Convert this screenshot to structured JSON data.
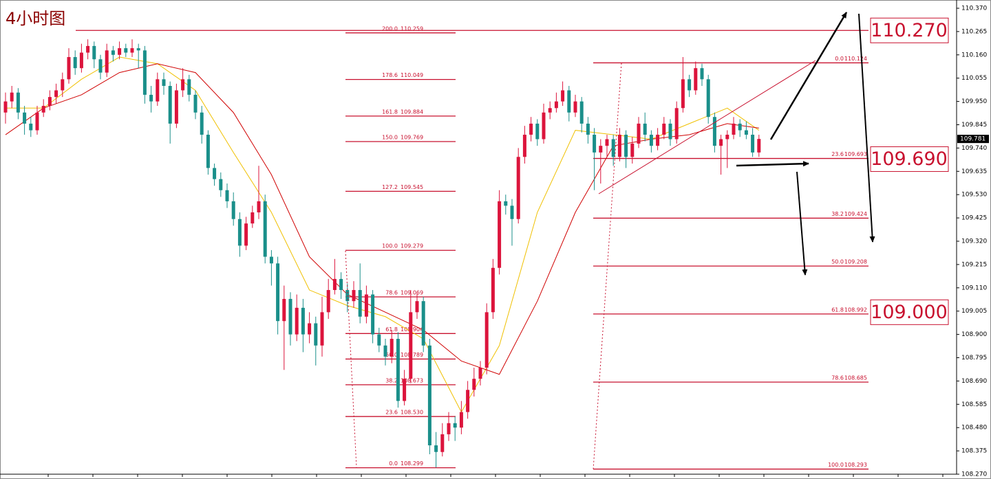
{
  "chart_data": {
    "type": "candlestick",
    "title": "4小时图",
    "ylim": [
      108.27,
      110.37
    ],
    "yticks": [
      {
        "value": 110.37,
        "label": "110.370"
      },
      {
        "value": 110.265,
        "label": "110.265"
      },
      {
        "value": 110.16,
        "label": "110.160"
      },
      {
        "value": 110.055,
        "label": "110.055"
      },
      {
        "value": 109.95,
        "label": "109.950"
      },
      {
        "value": 109.845,
        "label": "109.845"
      },
      {
        "value": 109.74,
        "label": "109.740"
      },
      {
        "value": 109.635,
        "label": "109.635"
      },
      {
        "value": 109.53,
        "label": "109.530"
      },
      {
        "value": 109.425,
        "label": "109.425"
      },
      {
        "value": 109.32,
        "label": "109.320"
      },
      {
        "value": 109.215,
        "label": "109.215"
      },
      {
        "value": 109.11,
        "label": "109.110"
      },
      {
        "value": 109.005,
        "label": "109.005"
      },
      {
        "value": 108.9,
        "label": "108.900"
      },
      {
        "value": 108.795,
        "label": "108.795"
      },
      {
        "value": 108.69,
        "label": "108.690"
      },
      {
        "value": 108.585,
        "label": "108.585"
      },
      {
        "value": 108.48,
        "label": "108.480"
      },
      {
        "value": 108.375,
        "label": "108.375"
      },
      {
        "value": 108.27,
        "label": "108.270"
      }
    ],
    "up_color": "#dc143c",
    "down_color": "#1a8f8a",
    "fib_color": "#c8102e",
    "ohlc": [
      [
        109.9,
        109.99,
        109.85,
        109.95
      ],
      [
        109.95,
        110.02,
        109.92,
        109.99
      ],
      [
        109.99,
        110.01,
        109.87,
        109.9
      ],
      [
        109.9,
        109.93,
        109.8,
        109.85
      ],
      [
        109.85,
        109.88,
        109.79,
        109.82
      ],
      [
        109.82,
        109.93,
        109.8,
        109.9
      ],
      [
        109.9,
        109.96,
        109.88,
        109.93
      ],
      [
        109.93,
        110.0,
        109.91,
        109.97
      ],
      [
        109.97,
        110.03,
        109.94,
        110.0
      ],
      [
        110.0,
        110.08,
        109.97,
        110.05
      ],
      [
        110.05,
        110.19,
        110.03,
        110.15
      ],
      [
        110.15,
        110.18,
        110.07,
        110.1
      ],
      [
        110.1,
        110.21,
        110.08,
        110.17
      ],
      [
        110.17,
        110.23,
        110.14,
        110.2
      ],
      [
        110.2,
        110.22,
        110.1,
        110.14
      ],
      [
        110.14,
        110.16,
        110.05,
        110.08
      ],
      [
        110.08,
        110.21,
        110.06,
        110.18
      ],
      [
        110.18,
        110.2,
        110.13,
        110.16
      ],
      [
        110.16,
        110.22,
        110.14,
        110.19
      ],
      [
        110.19,
        110.21,
        110.15,
        110.17
      ],
      [
        110.17,
        110.23,
        110.15,
        110.19
      ],
      [
        110.19,
        110.21,
        110.1,
        110.18
      ],
      [
        110.18,
        110.2,
        109.94,
        109.98
      ],
      [
        109.98,
        110.02,
        109.9,
        109.95
      ],
      [
        109.95,
        110.08,
        109.93,
        110.05
      ],
      [
        110.05,
        110.08,
        109.98,
        110.02
      ],
      [
        110.02,
        110.04,
        109.76,
        109.85
      ],
      [
        109.85,
        110.03,
        109.83,
        110.0
      ],
      [
        110.0,
        110.1,
        109.97,
        110.05
      ],
      [
        110.05,
        110.07,
        109.95,
        109.98
      ],
      [
        109.98,
        110.0,
        109.87,
        109.9
      ],
      [
        109.9,
        109.93,
        109.76,
        109.8
      ],
      [
        109.8,
        109.82,
        109.62,
        109.65
      ],
      [
        109.65,
        109.67,
        109.57,
        109.6
      ],
      [
        109.6,
        109.63,
        109.52,
        109.55
      ],
      [
        109.55,
        109.58,
        109.47,
        109.5
      ],
      [
        109.5,
        109.54,
        109.39,
        109.42
      ],
      [
        109.42,
        109.45,
        109.25,
        109.3
      ],
      [
        109.3,
        109.43,
        109.28,
        109.4
      ],
      [
        109.4,
        109.48,
        109.38,
        109.45
      ],
      [
        109.45,
        109.66,
        109.42,
        109.5
      ],
      [
        109.5,
        109.53,
        109.22,
        109.25
      ],
      [
        109.25,
        109.28,
        109.12,
        109.22
      ],
      [
        109.22,
        109.25,
        108.9,
        108.96
      ],
      [
        108.96,
        109.12,
        108.74,
        109.06
      ],
      [
        109.06,
        109.09,
        108.85,
        108.9
      ],
      [
        108.9,
        109.08,
        108.87,
        109.02
      ],
      [
        109.02,
        109.06,
        108.82,
        108.9
      ],
      [
        108.9,
        109.0,
        108.86,
        108.95
      ],
      [
        108.95,
        108.98,
        108.76,
        108.85
      ],
      [
        108.85,
        109.07,
        108.8,
        109.0
      ],
      [
        109.0,
        109.15,
        108.97,
        109.1
      ],
      [
        109.1,
        109.24,
        109.08,
        109.15
      ],
      [
        109.15,
        109.18,
        109.06,
        109.1
      ],
      [
        109.1,
        109.13,
        109.0,
        109.05
      ],
      [
        109.05,
        109.14,
        109.02,
        109.1
      ],
      [
        109.1,
        109.22,
        108.95,
        108.98
      ],
      [
        108.98,
        109.12,
        108.95,
        109.08
      ],
      [
        109.08,
        109.1,
        108.86,
        108.9
      ],
      [
        108.9,
        108.93,
        108.82,
        108.85
      ],
      [
        108.85,
        108.88,
        108.76,
        108.8
      ],
      [
        108.8,
        108.92,
        108.77,
        108.88
      ],
      [
        108.88,
        108.91,
        108.57,
        108.6
      ],
      [
        108.6,
        108.74,
        108.58,
        108.7
      ],
      [
        108.7,
        109.1,
        108.68,
        109.0
      ],
      [
        109.0,
        109.09,
        108.97,
        109.05
      ],
      [
        109.05,
        109.07,
        108.82,
        108.85
      ],
      [
        108.85,
        108.88,
        108.36,
        108.4
      ],
      [
        108.4,
        108.46,
        108.3,
        108.37
      ],
      [
        108.37,
        108.5,
        108.35,
        108.45
      ],
      [
        108.45,
        108.55,
        108.42,
        108.5
      ],
      [
        108.5,
        108.53,
        108.42,
        108.48
      ],
      [
        108.48,
        108.6,
        108.45,
        108.55
      ],
      [
        108.55,
        108.69,
        108.52,
        108.65
      ],
      [
        108.65,
        108.75,
        108.62,
        108.7
      ],
      [
        108.7,
        108.78,
        108.67,
        108.75
      ],
      [
        108.75,
        109.04,
        108.72,
        109.0
      ],
      [
        109.0,
        109.24,
        108.97,
        109.2
      ],
      [
        109.2,
        109.55,
        109.17,
        109.5
      ],
      [
        109.5,
        109.53,
        109.44,
        109.48
      ],
      [
        109.48,
        109.51,
        109.3,
        109.42
      ],
      [
        109.42,
        109.74,
        109.4,
        109.7
      ],
      [
        109.7,
        109.84,
        109.67,
        109.8
      ],
      [
        109.8,
        109.88,
        109.77,
        109.85
      ],
      [
        109.85,
        109.87,
        109.75,
        109.78
      ],
      [
        109.78,
        109.94,
        109.76,
        109.9
      ],
      [
        109.9,
        109.95,
        109.87,
        109.92
      ],
      [
        109.92,
        109.99,
        109.9,
        109.95
      ],
      [
        109.95,
        110.04,
        109.93,
        110.0
      ],
      [
        110.0,
        110.02,
        109.86,
        109.9
      ],
      [
        109.9,
        109.98,
        109.88,
        109.95
      ],
      [
        109.95,
        109.97,
        109.81,
        109.85
      ],
      [
        109.85,
        109.88,
        109.76,
        109.8
      ],
      [
        109.8,
        109.83,
        109.55,
        109.72
      ],
      [
        109.72,
        109.78,
        109.58,
        109.75
      ],
      [
        109.75,
        109.8,
        109.7,
        109.78
      ],
      [
        109.78,
        109.8,
        109.66,
        109.7
      ],
      [
        109.7,
        109.83,
        109.68,
        109.8
      ],
      [
        109.8,
        109.82,
        109.65,
        109.7
      ],
      [
        109.7,
        109.79,
        109.67,
        109.76
      ],
      [
        109.76,
        109.88,
        109.74,
        109.85
      ],
      [
        109.85,
        109.9,
        109.77,
        109.8
      ],
      [
        109.8,
        109.82,
        109.72,
        109.75
      ],
      [
        109.75,
        109.83,
        109.73,
        109.8
      ],
      [
        109.8,
        109.88,
        109.78,
        109.85
      ],
      [
        109.85,
        109.87,
        109.75,
        109.78
      ],
      [
        109.78,
        109.95,
        109.76,
        109.92
      ],
      [
        109.92,
        110.15,
        109.9,
        110.05
      ],
      [
        110.05,
        110.07,
        109.97,
        110.0
      ],
      [
        110.0,
        110.13,
        109.98,
        110.1
      ],
      [
        110.1,
        110.12,
        110.02,
        110.05
      ],
      [
        110.05,
        110.07,
        109.85,
        109.88
      ],
      [
        109.88,
        109.9,
        109.72,
        109.75
      ],
      [
        109.75,
        109.8,
        109.62,
        109.78
      ],
      [
        109.78,
        109.82,
        109.65,
        109.8
      ],
      [
        109.8,
        109.88,
        109.78,
        109.85
      ],
      [
        109.85,
        109.87,
        109.79,
        109.82
      ],
      [
        109.82,
        109.86,
        109.78,
        109.8
      ],
      [
        109.8,
        109.83,
        109.7,
        109.72
      ],
      [
        109.72,
        109.8,
        109.7,
        109.781
      ]
    ],
    "series": [
      {
        "color": "#f0c000",
        "x": [
          0,
          6,
          12,
          18,
          24,
          30,
          36,
          42,
          48,
          54,
          60,
          66,
          72,
          78,
          84,
          90,
          96,
          102,
          108,
          114,
          119
        ],
        "values": [
          109.92,
          109.92,
          110.05,
          110.15,
          110.12,
          110.0,
          109.72,
          109.45,
          109.1,
          109.03,
          108.98,
          108.88,
          108.55,
          108.85,
          109.45,
          109.82,
          109.8,
          109.78,
          109.85,
          109.92,
          109.82
        ]
      },
      {
        "color": "#d00000",
        "x": [
          0,
          6,
          12,
          18,
          24,
          30,
          36,
          42,
          48,
          54,
          60,
          66,
          72,
          78,
          84,
          90,
          96,
          102,
          108,
          114,
          119
        ],
        "values": [
          109.8,
          109.92,
          109.98,
          110.08,
          110.12,
          110.08,
          109.9,
          109.62,
          109.25,
          109.08,
          109.0,
          108.92,
          108.78,
          108.72,
          109.05,
          109.45,
          109.75,
          109.78,
          109.8,
          109.85,
          109.83
        ]
      }
    ],
    "fib_sets": [
      {
        "levels": [
          {
            "ratio": "200.0",
            "price": 110.259
          },
          {
            "ratio": "178.6",
            "price": 110.049
          },
          {
            "ratio": "161.8",
            "price": 109.884
          },
          {
            "ratio": "150.0",
            "price": 109.769
          },
          {
            "ratio": "127.2",
            "price": 109.545
          },
          {
            "ratio": "100.0",
            "price": 109.279
          },
          {
            "ratio": "78.6",
            "price": 109.069
          },
          {
            "ratio": "61.8",
            "price": 108.904
          },
          {
            "ratio": "50.0",
            "price": 108.789
          },
          {
            "ratio": "38.2",
            "price": 108.673
          },
          {
            "ratio": "23.6",
            "price": {
              "value": 108.53,
              "label": "108.530"
            }
          },
          {
            "ratio": "0.0",
            "price": 108.299
          }
        ]
      },
      {
        "levels": [
          {
            "ratio": "0.0",
            "price": 110.124
          },
          {
            "ratio": "23.6",
            "price": 109.693
          },
          {
            "ratio": "38.2",
            "price": 109.424
          },
          {
            "ratio": "50.0",
            "price": 109.208
          },
          {
            "ratio": "61.8",
            "price": 108.992
          },
          {
            "ratio": "78.6",
            "price": 108.685
          },
          {
            "ratio": "100.0",
            "price": 108.293
          }
        ]
      }
    ],
    "levels": [
      {
        "value": 110.27,
        "label": "110.270"
      },
      {
        "value": 109.69,
        "label": "109.690"
      },
      {
        "value": 109.0,
        "label": "109.000"
      }
    ],
    "last_price": 109.781
  }
}
